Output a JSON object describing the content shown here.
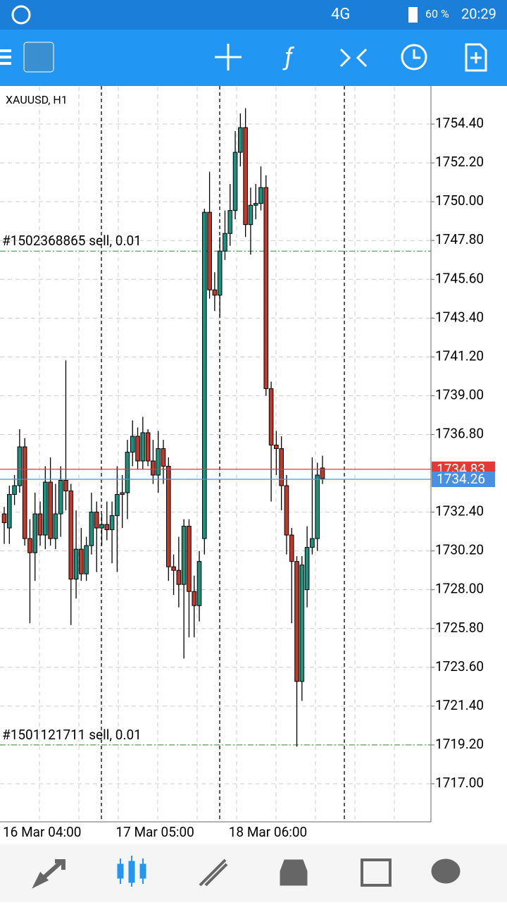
{
  "status_bar": {
    "network": "4G",
    "battery": "60 %",
    "time": "20:29"
  },
  "chart_data": {
    "type": "candlestick",
    "title": "XAUUSD, H1",
    "categories": [
      "16 Mar 04:00",
      null,
      null,
      null,
      null,
      null,
      null,
      null,
      null,
      null,
      null,
      null,
      null,
      null,
      null,
      null,
      null,
      null,
      null,
      null,
      null,
      null,
      "17 Mar 05:00",
      null,
      null,
      null,
      null,
      null,
      null,
      null,
      null,
      null,
      null,
      null,
      null,
      null,
      null,
      null,
      null,
      null,
      null,
      null,
      null,
      null,
      "18 Mar 06:00",
      null,
      null,
      null,
      null,
      null,
      null,
      null,
      null,
      null,
      null,
      null,
      null,
      null,
      null,
      null,
      null,
      null,
      null
    ],
    "open": [
      1732.3,
      1731.5,
      1733.4,
      1733.9,
      1736.1,
      1730.9,
      1730.1,
      1732.3,
      1731.1,
      1734.1,
      1730.9,
      1732.3,
      1734.2,
      1733.6,
      1728.6,
      1730.3,
      1728.9,
      1730.5,
      1732.4,
      1731.5,
      1731.7,
      1731.4,
      1732.2,
      1733.4,
      1733.5,
      1735.8,
      1736.7,
      1735.3,
      1736.9,
      1735.3,
      1734.5,
      1736.0,
      1735.0,
      1729.3,
      1729.1,
      1728.3,
      1731.6,
      1727.9,
      1727.1,
      1730.9,
      1749.4,
      1745.0,
      1744.7,
      1747.2,
      1748.2,
      1749.5,
      1752.8,
      1754.2,
      1748.7,
      1749.8,
      1749.9,
      1750.8,
      1739.4,
      1736.2,
      1736.0,
      1733.9,
      1731.1,
      1729.6,
      1722.8,
      1728.0,
      1730.4,
      1730.9,
      1734.9
    ],
    "high": [
      1732.7,
      1733.9,
      1734.5,
      1737.1,
      1736.6,
      1732.0,
      1733.5,
      1733.0,
      1735.0,
      1735.5,
      1734.0,
      1735.0,
      1741.0,
      1734.0,
      1732.5,
      1731.5,
      1731.0,
      1733.5,
      1733.0,
      1732.3,
      1733.0,
      1733.0,
      1735.0,
      1734.5,
      1736.5,
      1737.6,
      1737.2,
      1737.8,
      1737.1,
      1736.5,
      1737.0,
      1736.5,
      1735.5,
      1730.0,
      1731.0,
      1732.0,
      1732.0,
      1728.8,
      1730.2,
      1749.6,
      1751.7,
      1746.0,
      1748.0,
      1749.5,
      1751.0,
      1754.0,
      1755.0,
      1755.3,
      1750.8,
      1751.0,
      1752.0,
      1751.5,
      1739.8,
      1737.0,
      1736.7,
      1734.5,
      1731.5,
      1729.9,
      1729.9,
      1731.6,
      1735.5,
      1735.2,
      1735.6
    ],
    "low": [
      1730.6,
      1730.6,
      1732.8,
      1733.5,
      1730.5,
      1726.1,
      1728.5,
      1730.5,
      1730.3,
      1730.5,
      1730.3,
      1731.0,
      1732.5,
      1726.0,
      1727.5,
      1728.5,
      1728.5,
      1730.0,
      1729.0,
      1730.5,
      1730.8,
      1729.5,
      1729.0,
      1731.5,
      1732.0,
      1735.0,
      1734.8,
      1734.8,
      1735.0,
      1734.0,
      1733.5,
      1734.0,
      1728.5,
      1727.7,
      1727.0,
      1724.1,
      1725.3,
      1725.3,
      1726.2,
      1730.0,
      1744.5,
      1743.8,
      1743.5,
      1746.7,
      1747.5,
      1749.0,
      1752.0,
      1748.0,
      1747.0,
      1749.0,
      1749.5,
      1739.0,
      1733.0,
      1734.5,
      1732.5,
      1730.0,
      1726.1,
      1719.1,
      1721.7,
      1727.0,
      1730.0,
      1730.2,
      1734.0
    ],
    "close": [
      1731.8,
      1733.4,
      1733.9,
      1736.1,
      1730.9,
      1730.1,
      1732.3,
      1731.1,
      1734.1,
      1730.9,
      1732.3,
      1734.2,
      1733.6,
      1728.6,
      1730.3,
      1728.9,
      1730.5,
      1732.4,
      1731.5,
      1731.7,
      1731.4,
      1732.2,
      1733.4,
      1733.5,
      1735.8,
      1736.7,
      1735.3,
      1736.9,
      1735.3,
      1734.5,
      1736.0,
      1735.0,
      1729.3,
      1729.1,
      1728.3,
      1731.6,
      1727.9,
      1727.1,
      1729.6,
      1749.4,
      1745.0,
      1744.7,
      1747.2,
      1748.2,
      1749.5,
      1752.8,
      1754.2,
      1748.7,
      1749.8,
      1749.9,
      1750.8,
      1739.4,
      1736.2,
      1736.0,
      1733.9,
      1731.1,
      1729.6,
      1722.8,
      1729.4,
      1730.4,
      1730.9,
      1734.5,
      1734.3
    ],
    "up_color": "#1f8f7e",
    "down_color": "#c0392b",
    "ylim": [
      1714.88,
      1756.52
    ],
    "yticks": [
      {
        "value": 1754.4,
        "label": "1754.40"
      },
      {
        "value": 1752.2,
        "label": "1752.20"
      },
      {
        "value": 1750,
        "label": "1750.00"
      },
      {
        "value": 1747.8,
        "label": "1747.80"
      },
      {
        "value": 1745.6,
        "label": "1745.60"
      },
      {
        "value": 1743.4,
        "label": "1743.40"
      },
      {
        "value": 1741.2,
        "label": "1741.20"
      },
      {
        "value": 1739,
        "label": "1739.00"
      },
      {
        "value": 1736.8,
        "label": "1736.80"
      },
      {
        "value": 1732.4,
        "label": "1732.40"
      },
      {
        "value": 1730.2,
        "label": "1730.20"
      },
      {
        "value": 1728,
        "label": "1728.00"
      },
      {
        "value": 1725.8,
        "label": "1725.80"
      },
      {
        "value": 1723.6,
        "label": "1723.60"
      },
      {
        "value": 1721.4,
        "label": "1721.40"
      },
      {
        "value": 1719.2,
        "label": "1719.20"
      },
      {
        "value": 1717,
        "label": "1717.00"
      }
    ],
    "grid": true,
    "orders": [
      {
        "label": "#1502368865 sell, 0.01",
        "value": 1747.2,
        "color": "#2e8b2e"
      },
      {
        "label": "#1501121711 sell, 0.01",
        "value": 1719.2,
        "color": "#2e8b2e"
      }
    ],
    "price_lines": [
      {
        "value": 1734.83,
        "color": "#e53935"
      },
      {
        "value": 1734.26,
        "color": "#4a90e2"
      }
    ]
  }
}
